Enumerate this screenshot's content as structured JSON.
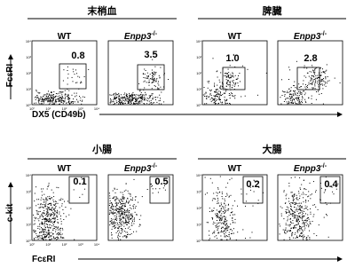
{
  "figure": {
    "tick_labels": [
      "10⁰",
      "10¹",
      "10²",
      "10³",
      "10⁴"
    ],
    "rows": [
      {
        "y_axis_label": "FcεRI",
        "x_axis_label": "DX5 (CD49b)",
        "groups": [
          {
            "title": "末梢血",
            "panels": [
              {
                "genotype": {
                  "name": "WT"
                },
                "percentage": "0.8"
              },
              {
                "genotype": {
                  "name": "Enpp3",
                  "superscript": "-/-"
                },
                "percentage": "3.5"
              }
            ]
          },
          {
            "title": "脾臓",
            "panels": [
              {
                "genotype": {
                  "name": "WT"
                },
                "percentage": "1.0"
              },
              {
                "genotype": {
                  "name": "Enpp3",
                  "superscript": "-/-"
                },
                "percentage": "2.8"
              }
            ]
          }
        ]
      },
      {
        "y_axis_label": "c-kit",
        "x_axis_label": "FcεRI",
        "groups": [
          {
            "title": "小腸",
            "panels": [
              {
                "genotype": {
                  "name": "WT"
                },
                "percentage": "0.1"
              },
              {
                "genotype": {
                  "name": "Enpp3",
                  "superscript": "-/-"
                },
                "percentage": "0.5"
              }
            ]
          },
          {
            "title": "大腸",
            "panels": [
              {
                "genotype": {
                  "name": "WT"
                },
                "percentage": "0.2"
              },
              {
                "genotype": {
                  "name": "Enpp3",
                  "superscript": "-/-"
                },
                "percentage": "0.4"
              }
            ]
          }
        ]
      }
    ]
  }
}
